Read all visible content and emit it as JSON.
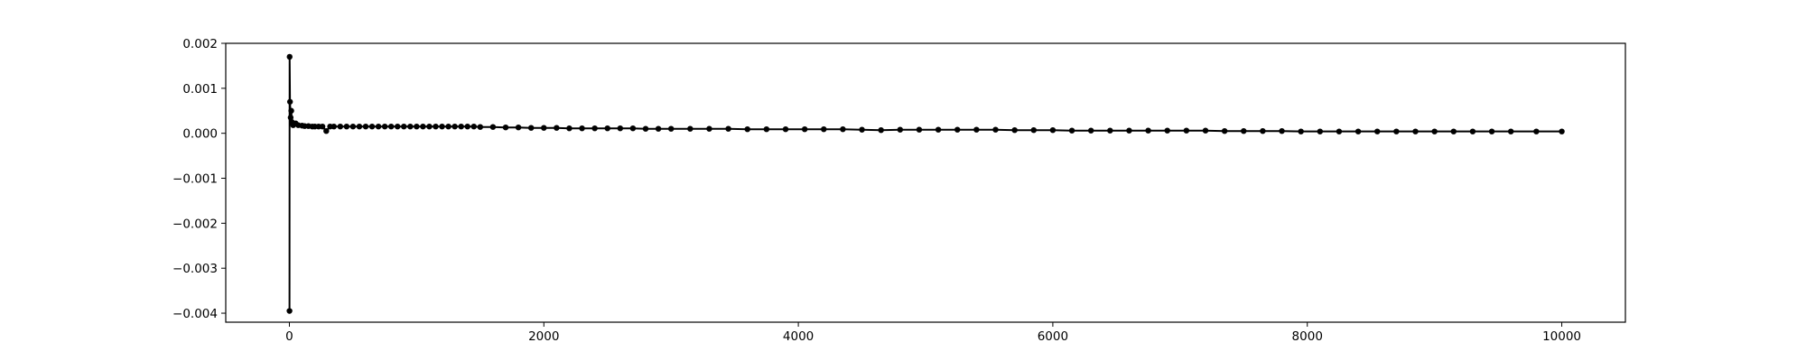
{
  "chart_data": {
    "type": "line",
    "title": "",
    "xlabel": "",
    "ylabel": "",
    "xlim": [
      -500,
      10500
    ],
    "ylim": [
      -0.0042,
      0.002
    ],
    "x_ticks": [
      0,
      2000,
      4000,
      6000,
      8000,
      10000
    ],
    "x_tick_labels": [
      "0",
      "2000",
      "4000",
      "6000",
      "8000",
      "10000"
    ],
    "y_ticks": [
      0.002,
      0.001,
      0.0,
      -0.001,
      -0.002,
      -0.003,
      -0.004
    ],
    "y_tick_labels": [
      "0.002",
      "0.001",
      "0.000",
      "−0.001",
      "−0.002",
      "−0.003",
      "−0.004"
    ],
    "grid": false,
    "legend": "none",
    "color": "#000000",
    "marker": "circle",
    "series": [
      {
        "x": [
          1,
          2,
          5,
          10,
          15,
          20,
          30,
          50,
          70,
          100,
          120,
          150,
          180,
          200,
          230,
          260,
          290,
          320,
          350,
          400,
          450,
          500,
          550,
          600,
          650,
          700,
          750,
          800,
          850,
          900,
          950,
          1000,
          1050,
          1100,
          1150,
          1200,
          1250,
          1300,
          1350,
          1400,
          1450,
          1500,
          1600,
          1700,
          1800,
          1900,
          2000,
          2100,
          2200,
          2300,
          2400,
          2500,
          2600,
          2700,
          2800,
          2900,
          3000,
          3150,
          3300,
          3450,
          3600,
          3750,
          3900,
          4050,
          4200,
          4350,
          4500,
          4650,
          4800,
          4950,
          5100,
          5250,
          5400,
          5550,
          5700,
          5850,
          6000,
          6150,
          6300,
          6450,
          6600,
          6750,
          6900,
          7050,
          7200,
          7350,
          7500,
          7650,
          7800,
          7950,
          8100,
          8250,
          8400,
          8550,
          8700,
          8850,
          9000,
          9150,
          9300,
          9450,
          9600,
          9800,
          10000
        ],
        "y": [
          -0.00395,
          0.0017,
          0.0007,
          0.00035,
          0.0005,
          0.00025,
          0.00018,
          0.00022,
          0.00018,
          0.00017,
          0.00016,
          0.00016,
          0.00015,
          0.00015,
          0.00015,
          0.00015,
          5e-05,
          0.00015,
          0.00015,
          0.00015,
          0.00015,
          0.00015,
          0.00015,
          0.00015,
          0.00015,
          0.00015,
          0.00015,
          0.00015,
          0.00015,
          0.00015,
          0.00015,
          0.00015,
          0.00015,
          0.00015,
          0.00015,
          0.00015,
          0.00015,
          0.00015,
          0.00015,
          0.00015,
          0.00015,
          0.00014,
          0.00014,
          0.00013,
          0.00013,
          0.00012,
          0.00012,
          0.00012,
          0.00011,
          0.00011,
          0.00011,
          0.00011,
          0.00011,
          0.00011,
          0.0001,
          0.0001,
          0.0001,
          0.0001,
          0.0001,
          0.0001,
          9e-05,
          9e-05,
          9e-05,
          9e-05,
          9e-05,
          9e-05,
          8e-05,
          7e-05,
          8e-05,
          8e-05,
          8e-05,
          8e-05,
          8e-05,
          8e-05,
          7e-05,
          7e-05,
          7e-05,
          6e-05,
          6e-05,
          6e-05,
          6e-05,
          6e-05,
          6e-05,
          6e-05,
          6e-05,
          5e-05,
          5e-05,
          5e-05,
          5e-05,
          4e-05,
          4e-05,
          4e-05,
          4e-05,
          4e-05,
          4e-05,
          4e-05,
          4e-05,
          4e-05,
          4e-05,
          4e-05,
          4e-05,
          4e-05,
          4e-05
        ]
      }
    ]
  }
}
